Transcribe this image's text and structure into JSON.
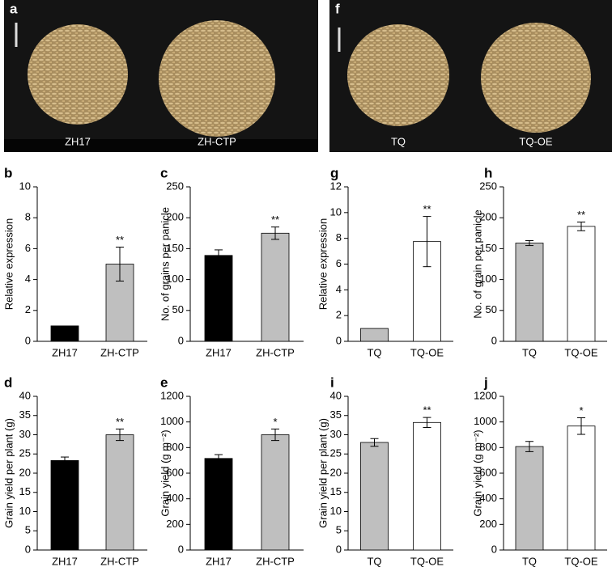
{
  "photo_panels": [
    {
      "letter": "a",
      "labels": [
        "ZH17",
        "ZH-CTP"
      ]
    },
    {
      "letter": "f",
      "labels": [
        "TQ",
        "TQ-OE"
      ]
    }
  ],
  "chart_data": [
    {
      "type": "bar",
      "panel": "b",
      "ylabel": "Relative expression",
      "categories": [
        "ZH17",
        "ZH-CTP"
      ],
      "values": [
        1,
        5.0
      ],
      "errors": [
        0,
        1.1
      ],
      "colors": [
        "#000000",
        "#bfbfbf"
      ],
      "significance": [
        null,
        "**"
      ],
      "ylim": [
        0,
        10
      ],
      "yticks": [
        0,
        2,
        4,
        6,
        8,
        10
      ]
    },
    {
      "type": "bar",
      "panel": "c",
      "ylabel": "No. of grains per panicle",
      "categories": [
        "ZH17",
        "ZH-CTP"
      ],
      "values": [
        139,
        175
      ],
      "errors": [
        9,
        10
      ],
      "colors": [
        "#000000",
        "#bfbfbf"
      ],
      "significance": [
        null,
        "**"
      ],
      "ylim": [
        0,
        250
      ],
      "yticks": [
        0,
        50,
        100,
        150,
        200,
        250
      ]
    },
    {
      "type": "bar",
      "panel": "g",
      "ylabel": "Relative expression",
      "categories": [
        "TQ",
        "TQ-OE"
      ],
      "values": [
        1,
        7.75
      ],
      "errors": [
        0,
        1.95
      ],
      "colors": [
        "#bfbfbf",
        "#ffffff"
      ],
      "significance": [
        null,
        "**"
      ],
      "ylim": [
        0,
        12
      ],
      "yticks": [
        0,
        2,
        4,
        6,
        8,
        10,
        12
      ]
    },
    {
      "type": "bar",
      "panel": "h",
      "ylabel": "No. of grain per panicle",
      "categories": [
        "TQ",
        "TQ-OE"
      ],
      "values": [
        159,
        186
      ],
      "errors": [
        4,
        7
      ],
      "colors": [
        "#bfbfbf",
        "#ffffff"
      ],
      "significance": [
        null,
        "**"
      ],
      "ylim": [
        0,
        250
      ],
      "yticks": [
        0,
        50,
        100,
        150,
        200,
        250
      ]
    },
    {
      "type": "bar",
      "panel": "d",
      "ylabel": "Grain yield per plant (g)",
      "categories": [
        "ZH17",
        "ZH-CTP"
      ],
      "values": [
        23.3,
        30.0
      ],
      "errors": [
        0.9,
        1.5
      ],
      "colors": [
        "#000000",
        "#bfbfbf"
      ],
      "significance": [
        null,
        "**"
      ],
      "ylim": [
        0,
        40
      ],
      "yticks": [
        0,
        5,
        10,
        15,
        20,
        25,
        30,
        35,
        40
      ]
    },
    {
      "type": "bar",
      "panel": "e",
      "ylabel": "Grain yield (g m⁻²)",
      "categories": [
        "ZH17",
        "ZH-CTP"
      ],
      "values": [
        715,
        900
      ],
      "errors": [
        30,
        45
      ],
      "colors": [
        "#000000",
        "#bfbfbf"
      ],
      "significance": [
        null,
        "*"
      ],
      "ylim": [
        0,
        1200
      ],
      "yticks": [
        0,
        200,
        400,
        600,
        800,
        1000,
        1200
      ]
    },
    {
      "type": "bar",
      "panel": "i",
      "ylabel": "Grain yield per plant (g)",
      "categories": [
        "TQ",
        "TQ-OE"
      ],
      "values": [
        28,
        33.2
      ],
      "errors": [
        1,
        1.3
      ],
      "colors": [
        "#bfbfbf",
        "#ffffff"
      ],
      "significance": [
        null,
        "**"
      ],
      "ylim": [
        0,
        40
      ],
      "yticks": [
        0,
        5,
        10,
        15,
        20,
        25,
        30,
        35,
        40
      ]
    },
    {
      "type": "bar",
      "panel": "j",
      "ylabel": "Grain yield (g m⁻²)",
      "categories": [
        "TQ",
        "TQ-OE"
      ],
      "values": [
        808,
        968
      ],
      "errors": [
        40,
        65
      ],
      "colors": [
        "#bfbfbf",
        "#ffffff"
      ],
      "significance": [
        null,
        "*"
      ],
      "ylim": [
        0,
        1200
      ],
      "yticks": [
        0,
        200,
        400,
        600,
        800,
        1000,
        1200
      ]
    }
  ]
}
